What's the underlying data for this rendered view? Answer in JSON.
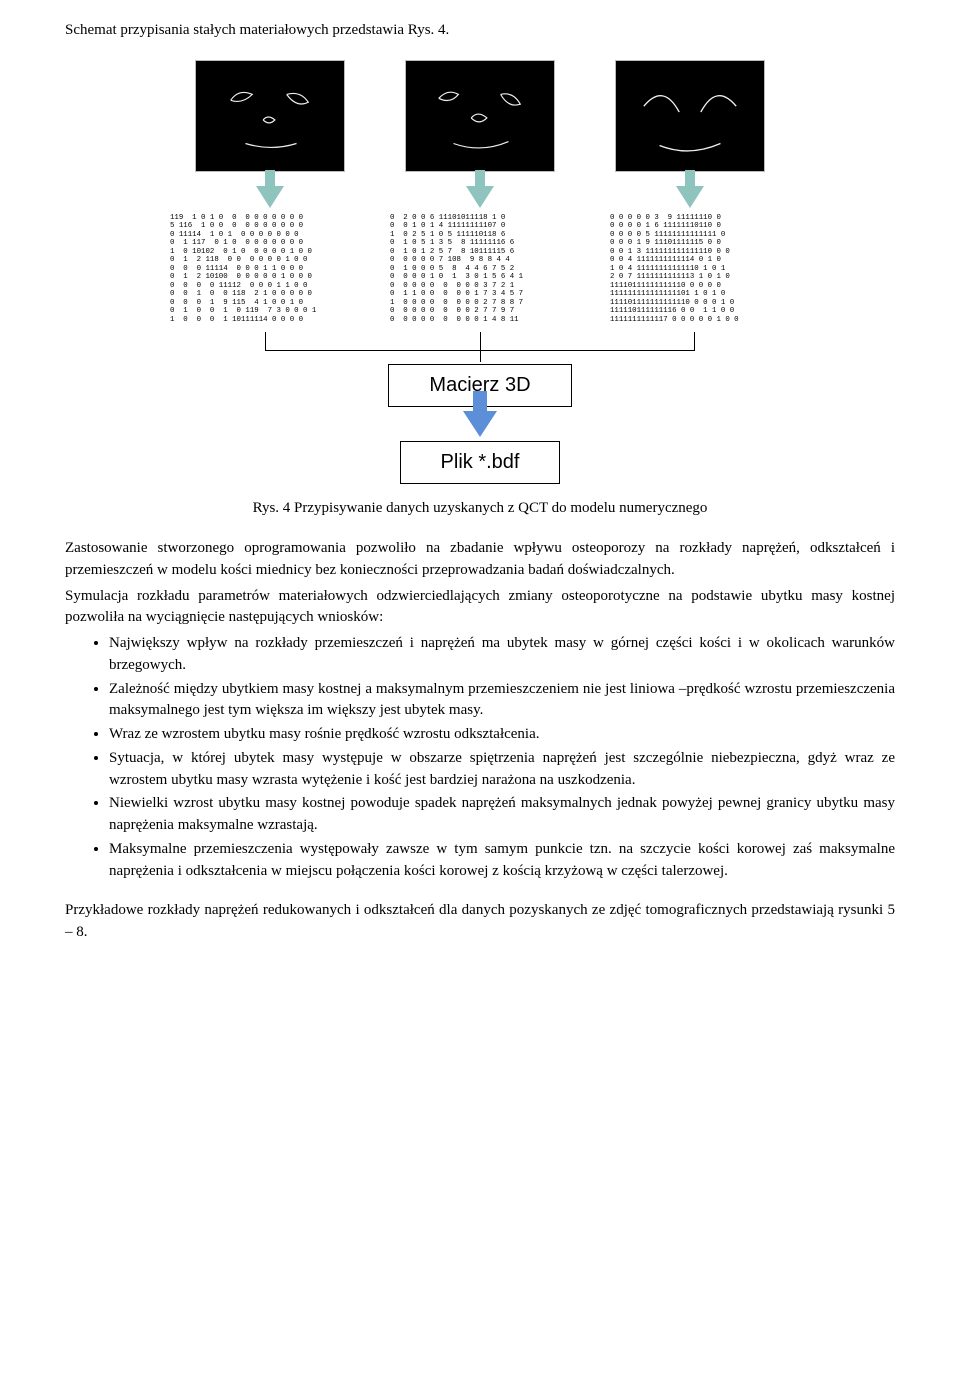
{
  "intro": "Schemat przypisania stałych materiałowych przedstawia Rys. 4.",
  "figure": {
    "thumbnail_bg": "#000000",
    "thumbnail_stroke": "#f5f5f5",
    "arrow_color_teal": "#8fc3bd",
    "arrow_color_blue": "#5d8ed8",
    "numblock1": "119  1 0 1 0  0  0 0 0 0 0 0 0\n5 116  1 0 0  0  0 0 0 0 0 0 0\n0 11114  1 0 1  0 0 0 0 0 0 0\n0  1 117  0 1 0  0 0 0 0 0 0 0\n1  0 10102  0 1 0  0 0 0 0 1 0 0\n0  1  2 118  0 0  0 0 0 0 1 0 0\n0  0  0 11114  0 0 0 1 1 0 0 0\n0  1  2 10100  0 0 0 0 0 1 0 0 0\n0  0  0  0 11112  0 0 0 1 1 0 0\n0  0  1  0  0 118  2 1 0 0 0 0 0\n0  0  0  1  9 115  4 1 0 0 1 0\n0  1  0  0  1  0 119  7 3 0 0 0 1\n1  0  0  0  1 10111114 0 0 0 0",
    "numblock2": "0  2 0 0 6 11101011118 1 0\n0  0 1 0 1 4 11111111107 0\n1  0 2 5 1 0 5 111110118 6\n0  1 0 5 1 3 5  8 11111116 6\n0  1 0 1 2 5 7  8 10111115 6\n0  0 0 0 0 7 108  9 8 8 4 4\n0  1 0 0 0 5  8  4 4 6 7 5 2\n0  0 0 0 1 0  1  3 0 1 5 6 4 1\n0  0 0 0 0  0  0 0 0 3 7 2 1\n0  1 1 0 0  0  0 0 1 7 3 4 5 7\n1  0 0 0 0  0  0 0 0 2 7 8 8 7\n0  0 0 0 0  0  0 0 2 7 7 9 7\n0  0 0 0 0  0  0 0 0 1 4 8 11",
    "numblock3": "0 0 0 0 0 3  9 11111110 0\n0 0 0 0 1 6 11111110110 0\n0 0 0 0 5 11111111111111 0\n0 0 0 1 9 11101111115 0 0\n0 0 1 3 111111111111110 0 0\n0 0 4 1111111111114 0 1 0\n1 0 4 11111111111110 1 0 1\n2 0 7 1111111111113 1 0 1 0\n11110111111111110 0 0 0 0\n111111111111111101 1 0 1 0\n111101111111111110 0 0 0 1 0\n111110111111116 0 0  1 1 0 0\n1111111111117 0 0 0 0 0 1 0 0",
    "box1": "Macierz 3D",
    "box2": "Plik *.bdf"
  },
  "caption": "Rys. 4 Przypisywanie danych uzyskanych z QCT do modelu numerycznego",
  "para1": "Zastosowanie stworzonego oprogramowania pozwoliło na zbadanie wpływu osteoporozy na rozkłady naprężeń, odkształceń i przemieszczeń w modelu kości miednicy bez konieczności przeprowadzania badań doświadczalnych.",
  "para2": "Symulacja rozkładu parametrów materiałowych odzwierciedlających zmiany osteoporotyczne na podstawie ubytku masy kostnej pozwoliła na wyciągnięcie następujących wniosków:",
  "bullets": [
    "Największy wpływ na rozkłady przemieszczeń i naprężeń ma ubytek masy w górnej części kości i w okolicach warunków brzegowych.",
    "Zależność między ubytkiem masy kostnej a maksymalnym przemieszczeniem nie jest liniowa –prędkość wzrostu przemieszczenia maksymalnego jest tym większa im większy jest ubytek masy.",
    "Wraz ze wzrostem ubytku masy rośnie prędkość wzrostu odkształcenia.",
    "Sytuacja, w której ubytek masy występuje w obszarze spiętrzenia naprężeń jest szczególnie niebezpieczna, gdyż wraz ze wzrostem ubytku masy wzrasta wytężenie i kość jest bardziej narażona na uszkodzenia.",
    "Niewielki wzrost ubytku masy kostnej powoduje spadek naprężeń maksymalnych jednak powyżej pewnej granicy ubytku masy naprężenia maksymalne wzrastają.",
    "Maksymalne przemieszczenia występowały zawsze w tym samym punkcie tzn. na szczycie kości korowej zaś maksymalne naprężenia i odkształcenia w miejscu połączenia kości korowej z kością krzyżową w części talerzowej."
  ],
  "closing": "Przykładowe rozkłady naprężeń redukowanych i odkształceń dla danych pozyskanych ze zdjęć tomograficznych przedstawiają rysunki 5 – 8."
}
